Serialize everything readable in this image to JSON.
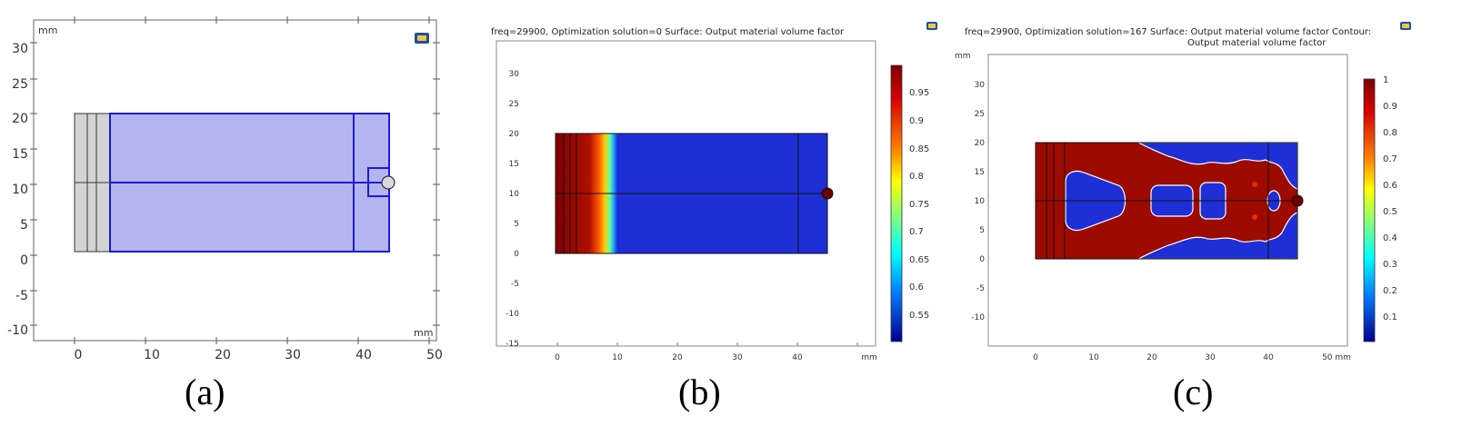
{
  "captions": [
    "(a)",
    "(b)",
    "(c)"
  ],
  "colors": {
    "geometry_fill": "#b4b4ee",
    "geometry_edge": "#1a1ae6",
    "gray_fill": "#d4d4d4",
    "colormap": "jet"
  },
  "panels": [
    {
      "id": "a",
      "unit_top": "mm",
      "unit_bottom": "mm",
      "x_ticks": [
        "0",
        "10",
        "20",
        "30",
        "40",
        "50"
      ],
      "y_ticks": [
        "30",
        "25",
        "20",
        "15",
        "10",
        "5",
        "0",
        "-5",
        "-10"
      ]
    },
    {
      "id": "b",
      "title": "freq=29900, Optimization solution=0   Surface: Output material volume factor",
      "unit": "mm",
      "x_ticks": [
        "0",
        "10",
        "20",
        "30",
        "40"
      ],
      "y_ticks": [
        "30",
        "25",
        "20",
        "15",
        "10",
        "5",
        "0",
        "-5",
        "-10",
        "-15"
      ],
      "colorbar": [
        "0.95",
        "0.9",
        "0.85",
        "0.8",
        "0.75",
        "0.7",
        "0.65",
        "0.6",
        "0.55"
      ]
    },
    {
      "id": "c",
      "title_line1": "freq=29900, Optimization solution=167  Surface: Output material volume factor  Contour:",
      "title_line2": "Output material volume factor",
      "unit_top": "mm",
      "unit_bottom": "50 mm",
      "x_ticks": [
        "0",
        "10",
        "20",
        "30",
        "40"
      ],
      "y_ticks": [
        "30",
        "25",
        "20",
        "15",
        "10",
        "5",
        "0",
        "-5",
        "-10"
      ],
      "colorbar": [
        "1",
        "0.9",
        "0.8",
        "0.7",
        "0.6",
        "0.5",
        "0.4",
        "0.3",
        "0.2",
        "0.1"
      ]
    }
  ]
}
